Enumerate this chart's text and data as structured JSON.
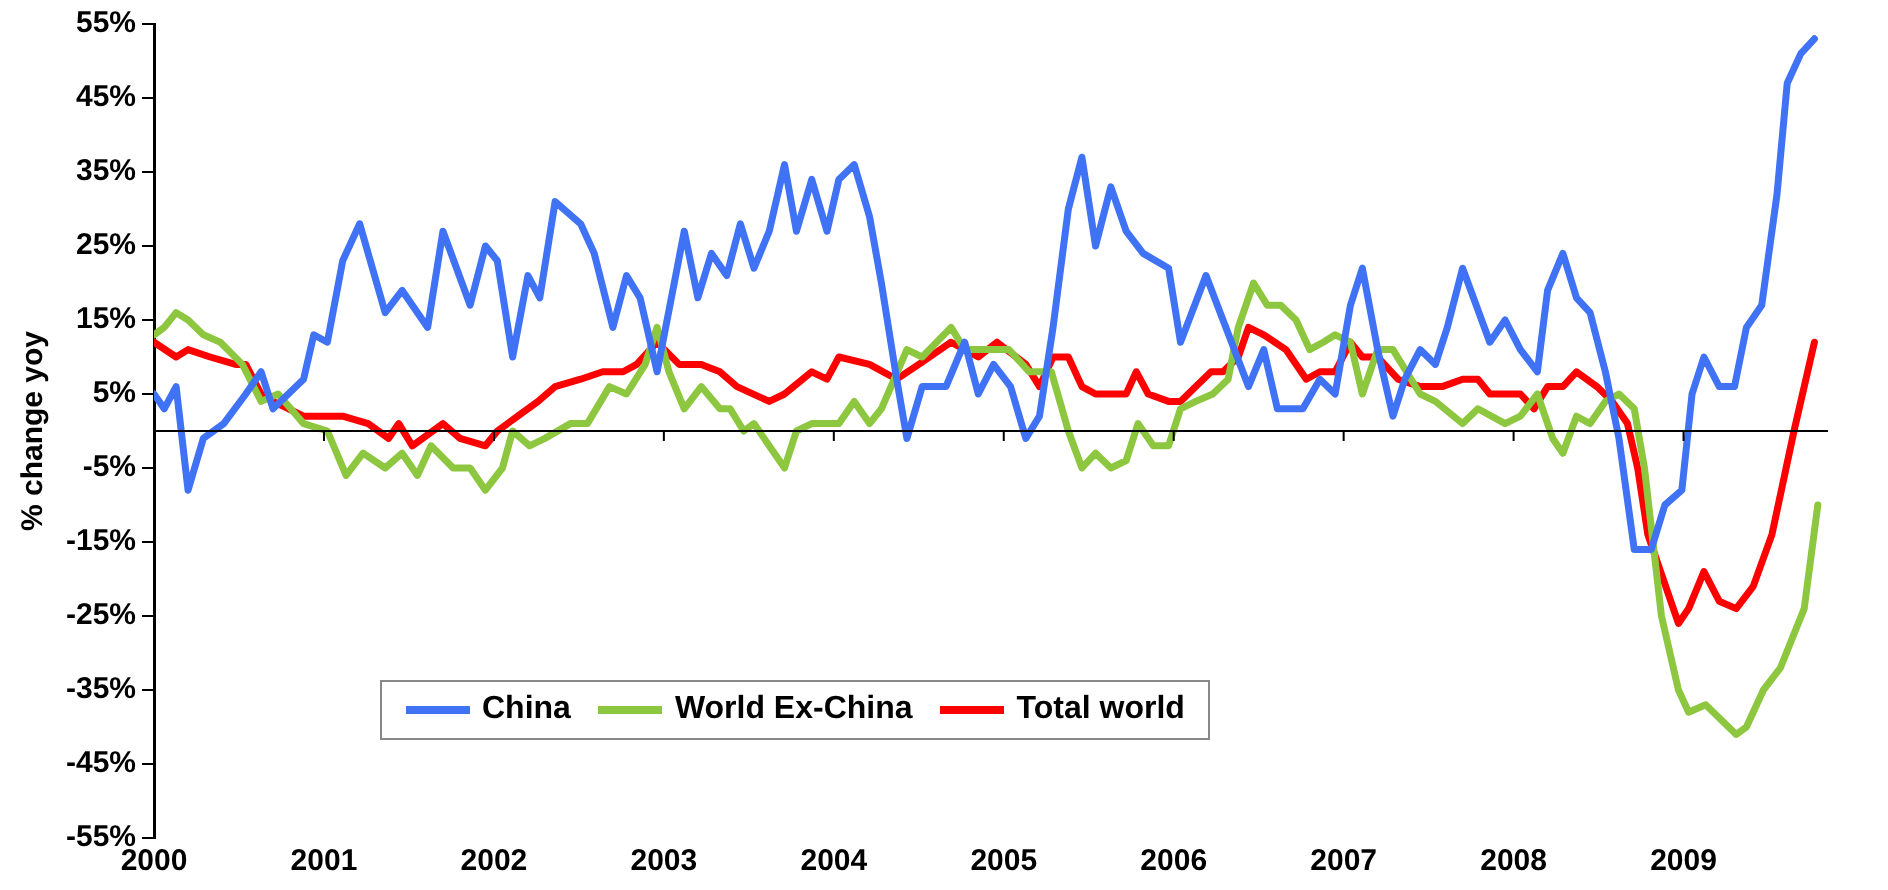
{
  "chart_data": {
    "type": "line",
    "ylabel": "% change yoy",
    "legend": "bottom left",
    "grid": false,
    "marker": "none",
    "line_style": "solid",
    "xlim": [
      2000,
      2009.85
    ],
    "xticks": [
      2000,
      2001,
      2002,
      2003,
      2004,
      2005,
      2006,
      2007,
      2008,
      2009
    ],
    "ylim": [
      -55,
      55
    ],
    "yticks": [
      {
        "value": -55,
        "label": "-55%"
      },
      {
        "value": -45,
        "label": "-45%"
      },
      {
        "value": -35,
        "label": "-35%"
      },
      {
        "value": -25,
        "label": "-25%"
      },
      {
        "value": -15,
        "label": "-15%"
      },
      {
        "value": -5,
        "label": "-5%"
      },
      {
        "value": 5,
        "label": "5%"
      },
      {
        "value": 15,
        "label": "15%"
      },
      {
        "value": 25,
        "label": "25%"
      },
      {
        "value": 35,
        "label": "35%"
      },
      {
        "value": 45,
        "label": "45%"
      },
      {
        "value": 55,
        "label": "55%"
      }
    ],
    "series": [
      {
        "name": "China",
        "color": "#3f72f5",
        "x": [
          2000.0,
          2000.06,
          2000.13,
          2000.2,
          2000.29,
          2000.41,
          2000.54,
          2000.63,
          2000.7,
          2000.88,
          2000.94,
          2001.02,
          2001.11,
          2001.21,
          2001.36,
          2001.46,
          2001.61,
          2001.7,
          2001.86,
          2001.95,
          2002.02,
          2002.11,
          2002.2,
          2002.27,
          2002.36,
          2002.51,
          2002.59,
          2002.7,
          2002.78,
          2002.86,
          2002.96,
          2003.12,
          2003.2,
          2003.28,
          2003.37,
          2003.45,
          2003.53,
          2003.62,
          2003.71,
          2003.78,
          2003.87,
          2003.96,
          2004.03,
          2004.12,
          2004.21,
          2004.28,
          2004.37,
          2004.43,
          2004.52,
          2004.66,
          2004.77,
          2004.85,
          2004.94,
          2005.04,
          2005.13,
          2005.21,
          2005.29,
          2005.38,
          2005.46,
          2005.54,
          2005.63,
          2005.72,
          2005.82,
          2005.97,
          2006.04,
          2006.19,
          2006.29,
          2006.44,
          2006.53,
          2006.61,
          2006.76,
          2006.86,
          2006.95,
          2007.04,
          2007.11,
          2007.2,
          2007.29,
          2007.36,
          2007.45,
          2007.54,
          2007.61,
          2007.7,
          2007.86,
          2007.95,
          2008.04,
          2008.14,
          2008.2,
          2008.29,
          2008.37,
          2008.45,
          2008.54,
          2008.62,
          2008.71,
          2008.81,
          2008.89,
          2008.99,
          2009.05,
          2009.12,
          2009.21,
          2009.3,
          2009.37,
          2009.46,
          2009.55,
          2009.61,
          2009.69,
          2009.77
        ],
        "values": [
          5,
          3,
          6,
          -8,
          -1,
          1,
          5,
          8,
          3,
          7,
          13,
          12,
          23,
          28,
          16,
          19,
          14,
          27,
          17,
          25,
          23,
          10,
          21,
          18,
          31,
          28,
          24,
          14,
          21,
          18,
          8,
          27,
          18,
          24,
          21,
          28,
          22,
          27,
          36,
          27,
          34,
          27,
          34,
          36,
          29,
          20,
          7,
          -1,
          6,
          6,
          12,
          5,
          9,
          6,
          -1,
          2,
          14,
          30,
          37,
          25,
          33,
          27,
          24,
          22,
          12,
          21,
          15,
          6,
          11,
          3,
          3,
          7,
          5,
          17,
          22,
          11,
          2,
          7,
          11,
          9,
          14,
          22,
          12,
          15,
          11,
          8,
          19,
          24,
          18,
          16,
          8,
          -1,
          -16,
          -16,
          -10,
          -8,
          5,
          10,
          6,
          6,
          14,
          17,
          32,
          47,
          51,
          53
        ]
      },
      {
        "name": "World Ex-China",
        "color": "#8dc63f",
        "x": [
          2000.0,
          2000.06,
          2000.13,
          2000.2,
          2000.29,
          2000.39,
          2000.52,
          2000.63,
          2000.73,
          2000.88,
          2001.02,
          2001.13,
          2001.23,
          2001.36,
          2001.46,
          2001.55,
          2001.63,
          2001.76,
          2001.86,
          2001.95,
          2002.05,
          2002.11,
          2002.21,
          2002.3,
          2002.45,
          2002.55,
          2002.68,
          2002.78,
          2002.89,
          2002.96,
          2003.03,
          2003.12,
          2003.22,
          2003.33,
          2003.39,
          2003.47,
          2003.53,
          2003.71,
          2003.78,
          2003.87,
          2004.03,
          2004.12,
          2004.21,
          2004.28,
          2004.43,
          2004.52,
          2004.69,
          2004.77,
          2004.85,
          2005.03,
          2005.15,
          2005.28,
          2005.38,
          2005.46,
          2005.54,
          2005.63,
          2005.72,
          2005.79,
          2005.88,
          2005.97,
          2006.04,
          2006.13,
          2006.23,
          2006.32,
          2006.38,
          2006.47,
          2006.55,
          2006.63,
          2006.72,
          2006.8,
          2006.88,
          2006.95,
          2007.04,
          2007.11,
          2007.2,
          2007.29,
          2007.45,
          2007.54,
          2007.7,
          2007.79,
          2007.95,
          2008.04,
          2008.14,
          2008.23,
          2008.29,
          2008.37,
          2008.45,
          2008.54,
          2008.62,
          2008.71,
          2008.77,
          2008.83,
          2008.87,
          2008.97,
          2009.03,
          2009.13,
          2009.31,
          2009.37,
          2009.47,
          2009.57,
          2009.71,
          2009.79
        ],
        "values": [
          13,
          14,
          16,
          15,
          13,
          12,
          9,
          4,
          5,
          1,
          0,
          -6,
          -3,
          -5,
          -3,
          -6,
          -2,
          -5,
          -5,
          -8,
          -5,
          0,
          -2,
          -1,
          1,
          1,
          6,
          5,
          9,
          14,
          8,
          3,
          6,
          3,
          3,
          0,
          1,
          -5,
          0,
          1,
          1,
          4,
          1,
          3,
          11,
          10,
          14,
          11,
          11,
          11,
          8,
          8,
          0,
          -5,
          -3,
          -5,
          -4,
          1,
          -2,
          -2,
          3,
          4,
          5,
          7,
          14,
          20,
          17,
          17,
          15,
          11,
          12,
          13,
          12,
          5,
          11,
          11,
          5,
          4,
          1,
          3,
          1,
          2,
          5,
          -1,
          -3,
          2,
          1,
          4,
          5,
          3,
          -5,
          -17,
          -25,
          -35,
          -38,
          -37,
          -41,
          -40,
          -35,
          -32,
          -24,
          -10
        ]
      },
      {
        "name": "Total world",
        "color": "#ff0000",
        "x": [
          2000.0,
          2000.13,
          2000.2,
          2000.33,
          2000.48,
          2000.54,
          2000.63,
          2000.7,
          2000.88,
          2001.01,
          2001.11,
          2001.26,
          2001.38,
          2001.44,
          2001.52,
          2001.7,
          2001.8,
          2001.95,
          2002.02,
          2002.14,
          2002.26,
          2002.36,
          2002.51,
          2002.64,
          2002.76,
          2002.84,
          2002.96,
          2003.09,
          2003.22,
          2003.33,
          2003.43,
          2003.62,
          2003.71,
          2003.87,
          2003.96,
          2004.03,
          2004.21,
          2004.37,
          2004.5,
          2004.69,
          2004.85,
          2004.96,
          2005.13,
          2005.21,
          2005.29,
          2005.38,
          2005.46,
          2005.54,
          2005.72,
          2005.78,
          2005.85,
          2005.97,
          2006.04,
          2006.13,
          2006.22,
          2006.29,
          2006.38,
          2006.44,
          2006.53,
          2006.66,
          2006.78,
          2006.86,
          2006.95,
          2007.04,
          2007.11,
          2007.2,
          2007.32,
          2007.45,
          2007.58,
          2007.7,
          2007.79,
          2007.86,
          2008.04,
          2008.12,
          2008.2,
          2008.29,
          2008.37,
          2008.49,
          2008.58,
          2008.67,
          2008.73,
          2008.79,
          2008.97,
          2009.03,
          2009.12,
          2009.21,
          2009.31,
          2009.41,
          2009.52,
          2009.65,
          2009.77
        ],
        "values": [
          12,
          10,
          11,
          10,
          9,
          9,
          5,
          4,
          2,
          2,
          2,
          1,
          -1,
          1,
          -2,
          1,
          -1,
          -2,
          0,
          2,
          4,
          6,
          7,
          8,
          8,
          9,
          12,
          9,
          9,
          8,
          6,
          4,
          5,
          8,
          7,
          10,
          9,
          7,
          9,
          12,
          10,
          12,
          9,
          6,
          10,
          10,
          6,
          5,
          5,
          8,
          5,
          4,
          4,
          6,
          8,
          8,
          10,
          14,
          13,
          11,
          7,
          8,
          8,
          12,
          10,
          10,
          7,
          6,
          6,
          7,
          7,
          5,
          5,
          3,
          6,
          6,
          8,
          6,
          4,
          1,
          -5,
          -14,
          -26,
          -24,
          -19,
          -23,
          -24,
          -21,
          -14,
          0,
          12
        ]
      }
    ]
  }
}
